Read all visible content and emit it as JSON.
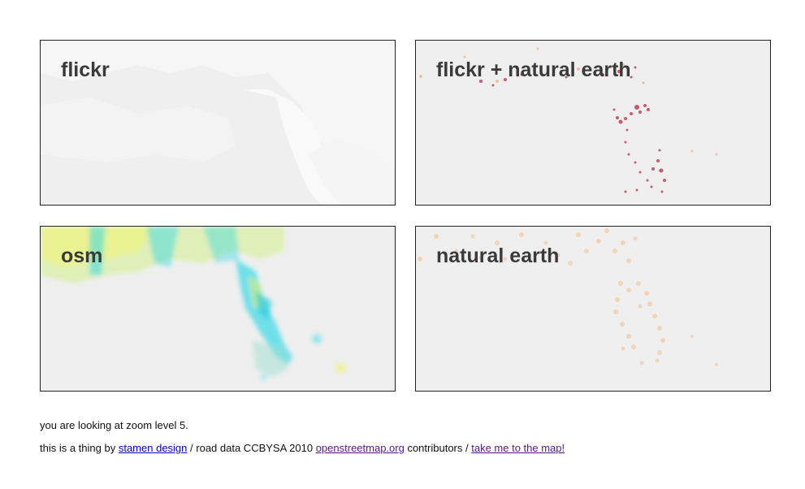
{
  "panels": [
    {
      "title": "flickr",
      "style": "flickr"
    },
    {
      "title": "flickr + natural earth",
      "style": "flickr-natural-earth"
    },
    {
      "title": "osm",
      "style": "osm"
    },
    {
      "title": "natural earth",
      "style": "natural-earth"
    }
  ],
  "colors": {
    "panel_bg": "#efefef",
    "flickr_tone": "#f8f8f8",
    "flickr_ne_dots": "#c0364a",
    "flickr_ne_halo": "#f0a070",
    "osm_cyan": "#2ad7e6",
    "osm_yellow": "#f2f25a",
    "natural_earth_dots": "#f5c9a0",
    "link": "#0000cc",
    "link_visited": "#551a8b"
  },
  "footer": {
    "zoom_text": "you are looking at zoom level 5.",
    "prefix": "this is a thing by",
    "stamen_link": "stamen design",
    "road_data_text": "/ road data CCBYSA 2010",
    "osm_link": "openstreetmap.org",
    "contributors_text": "contributors /",
    "map_link": "take me to the map!"
  }
}
